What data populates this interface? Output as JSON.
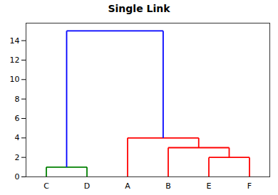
{
  "chart_data": {
    "type": "dendrogram",
    "title": "Single Link",
    "categories": [
      "C",
      "D",
      "A",
      "B",
      "E",
      "F"
    ],
    "merges": [
      {
        "left": [
          "C"
        ],
        "right": [
          "D"
        ],
        "height": 1.0,
        "color": "#008000"
      },
      {
        "left": [
          "E"
        ],
        "right": [
          "F"
        ],
        "height": 2.0,
        "color": "#ff0000"
      },
      {
        "left": [
          "B"
        ],
        "right": [
          "E",
          "F"
        ],
        "height": 3.0,
        "color": "#ff0000"
      },
      {
        "left": [
          "A"
        ],
        "right": [
          "B",
          "E",
          "F"
        ],
        "height": 4.0,
        "color": "#ff0000"
      },
      {
        "left": [
          "C",
          "D"
        ],
        "right": [
          "A",
          "B",
          "E",
          "F"
        ],
        "height": 15.0,
        "color": "#0000ff"
      }
    ],
    "ylim": [
      0,
      15.8
    ],
    "yticks": [
      0,
      2,
      4,
      6,
      8,
      10,
      12,
      14
    ]
  }
}
